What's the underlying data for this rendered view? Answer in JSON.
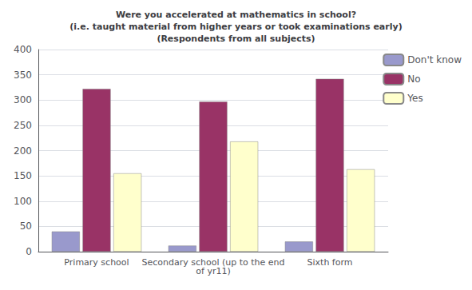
{
  "chart_data": {
    "type": "bar",
    "title": "Were you accelerated at mathematics in school?\n(i.e. taught material from higher years or took examinations early)\n(Respondents from all subjects)",
    "categories": [
      "Primary school",
      "Secondary school (up to the end\nof yr11)",
      "Sixth form"
    ],
    "series": [
      {
        "name": "Don't know",
        "color": "#9999cc",
        "values": [
          40,
          12,
          20
        ]
      },
      {
        "name": "No",
        "color": "#993366",
        "values": [
          322,
          297,
          342
        ]
      },
      {
        "name": "Yes",
        "color": "#ffffcc",
        "values": [
          155,
          218,
          163
        ]
      }
    ],
    "ylim": [
      0,
      400
    ],
    "yticks": [
      0,
      50,
      100,
      150,
      200,
      250,
      300,
      350,
      400
    ],
    "grid": true,
    "legend": "upper right"
  }
}
